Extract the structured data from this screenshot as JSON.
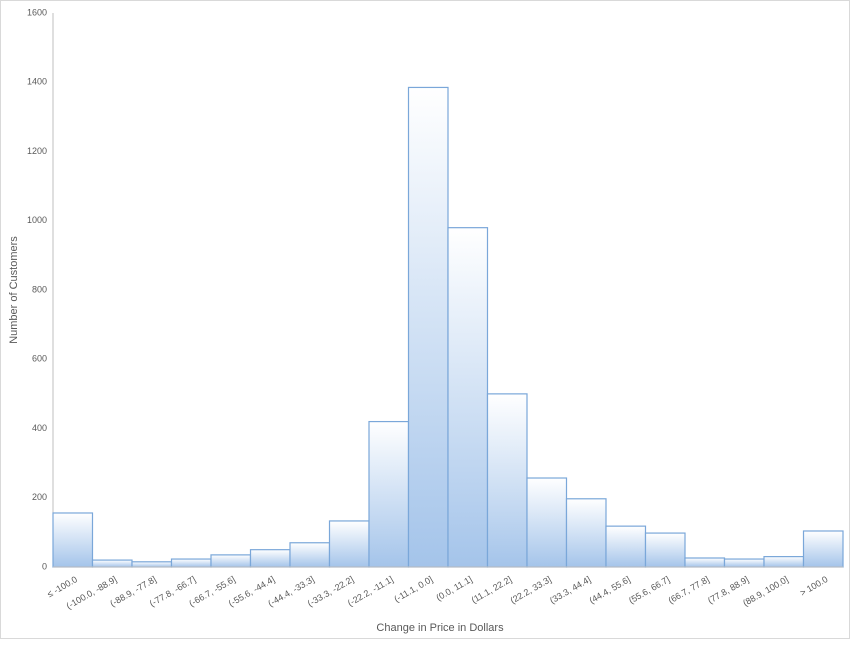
{
  "chart_data": {
    "type": "bar",
    "x_label": "Change in Price in Dollars",
    "y_label": "Number of Customers",
    "categories": [
      "≤ -100.0",
      "(-100.0, -88.9]",
      "(-88.9, -77.8]",
      "(-77.8, -66.7]",
      "(-66.7, -55.6]",
      "(-55.6, -44.4]",
      "(-44.4, -33.3]",
      "(-33.3, -22.2]",
      "(-22.2, -11.1]",
      "(-11.1, 0.0]",
      "(0.0, 11.1]",
      "(11.1, 22.2]",
      "(22.2, 33.3]",
      "(33.3, 44.4]",
      "(44.4, 55.6]",
      "(55.6, 66.7]",
      "(66.7, 77.8]",
      "(77.8, 88.9]",
      "(88.9, 100.0]",
      "> 100.0"
    ],
    "values": [
      156,
      20,
      15,
      23,
      35,
      50,
      70,
      133,
      420,
      1385,
      980,
      500,
      257,
      197,
      118,
      98,
      26,
      23,
      30,
      104
    ],
    "color": "#a4c4ea",
    "edge_color": "#7aa7d9",
    "ylim": [
      0,
      1600
    ],
    "yticks": [
      0,
      200,
      400,
      600,
      800,
      1000,
      1200,
      1400,
      1600
    ],
    "grid": false
  }
}
